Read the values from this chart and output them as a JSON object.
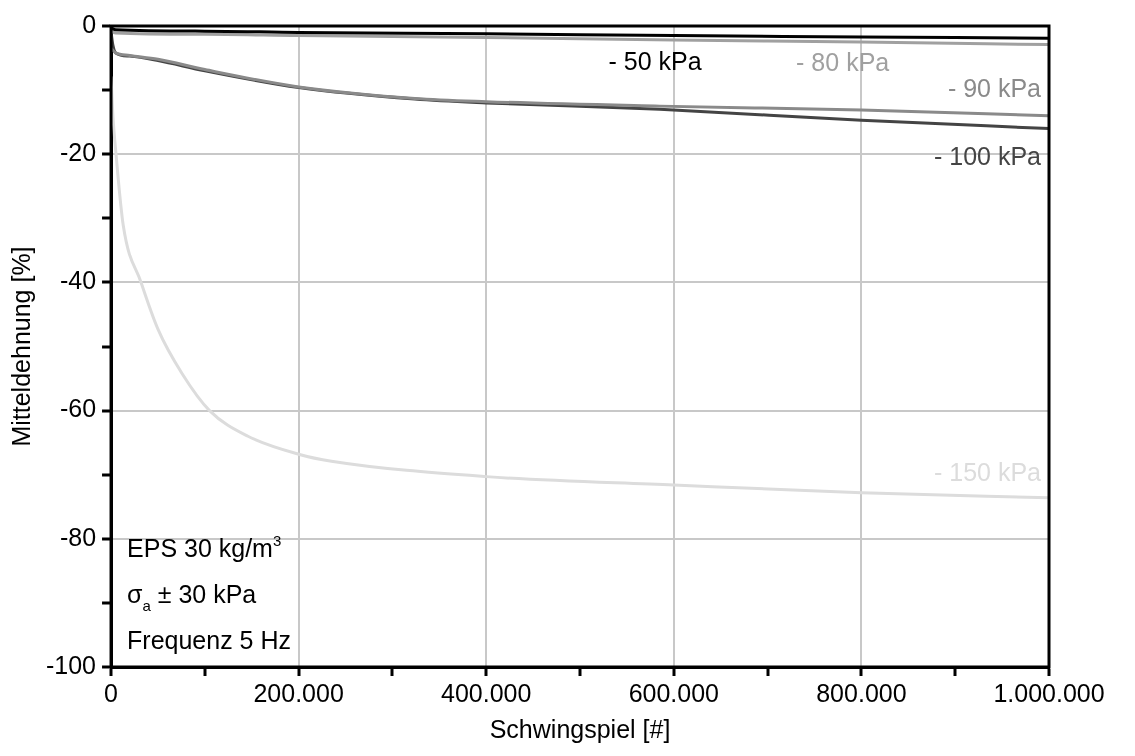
{
  "chart_data": {
    "type": "line",
    "xlabel": "Schwingspiel [#]",
    "ylabel": "Mitteldehnung [%]",
    "xlim": [
      0,
      1000000
    ],
    "ylim": [
      -100,
      0
    ],
    "xticks": [
      0,
      {
        "value": 100000,
        "label": null
      },
      {
        "value": 200000,
        "label": "200.000"
      },
      {
        "value": 300000,
        "label": null
      },
      {
        "value": 400000,
        "label": "400.000"
      },
      {
        "value": 500000,
        "label": null
      },
      {
        "value": 600000,
        "label": "600.000"
      },
      {
        "value": 700000,
        "label": null
      },
      {
        "value": 800000,
        "label": "800.000"
      },
      {
        "value": 900000,
        "label": null
      },
      {
        "value": 1000000,
        "label": "1.000.000"
      }
    ],
    "yticks": [
      0,
      {
        "value": -10,
        "label": null
      },
      -20,
      {
        "value": -30,
        "label": null
      },
      -40,
      {
        "value": -50,
        "label": null
      },
      -60,
      {
        "value": -70,
        "label": null
      },
      -80,
      {
        "value": -90,
        "label": null
      },
      -100
    ],
    "grid": true,
    "legend": false,
    "marker": "none",
    "line_style": "solid",
    "annotations": [
      "EPS 30 kg/m$^{3}$",
      "σ$_{a}$ ± 30 kPa",
      "Frequenz 5 Hz"
    ],
    "series": [
      {
        "name": "- 50 kPa",
        "color": "#000000",
        "x": [
          0,
          5000,
          100000,
          200000,
          400000,
          600000,
          800000,
          1000000
        ],
        "values": [
          -0.3,
          -0.6,
          -0.8,
          -1,
          -1.2,
          -1.5,
          -1.7,
          -1.9
        ]
      },
      {
        "name": "- 80 kPa",
        "color": "#a0a0a0",
        "x": [
          0,
          5000,
          100000,
          200000,
          400000,
          600000,
          800000,
          1000000
        ],
        "values": [
          -0.8,
          -1.1,
          -1.3,
          -1.5,
          -1.8,
          -2.2,
          -2.5,
          -2.9
        ]
      },
      {
        "name": "- 90 kPa",
        "color": "#8a8a8a",
        "x": [
          0,
          5000,
          20000,
          50000,
          100000,
          200000,
          324000,
          400000,
          585000,
          800000,
          1000000
        ],
        "values": [
          -3.5,
          -4.2,
          -4.6,
          -5.2,
          -6.8,
          -9.5,
          -11.3,
          -11.8,
          -12.5,
          -13.1,
          -14
        ]
      },
      {
        "name": "- 100 kPa",
        "color": "#444444",
        "x": [
          0,
          2000,
          5000,
          20000,
          50000,
          100000,
          200000,
          324000,
          400000,
          585000,
          800000,
          1000000
        ],
        "values": [
          -1,
          -3,
          -4.2,
          -4.7,
          -5.4,
          -7,
          -9.6,
          -11.4,
          -12,
          -13,
          -14.7,
          -16
        ]
      },
      {
        "name": "- 150 kPa",
        "color": "#dcdcdc",
        "x": [
          0,
          2000,
          5500,
          13000,
          32000,
          50000,
          76000,
          105000,
          146000,
          200000,
          235000,
          400000,
          600000,
          800000,
          1000000
        ],
        "values": [
          -8,
          -14,
          -20.3,
          -31.1,
          -40,
          -47.3,
          -54.3,
          -60,
          -64,
          -66.8,
          -67.9,
          -70.3,
          -71.6,
          -72.8,
          -73.6
        ]
      }
    ]
  }
}
